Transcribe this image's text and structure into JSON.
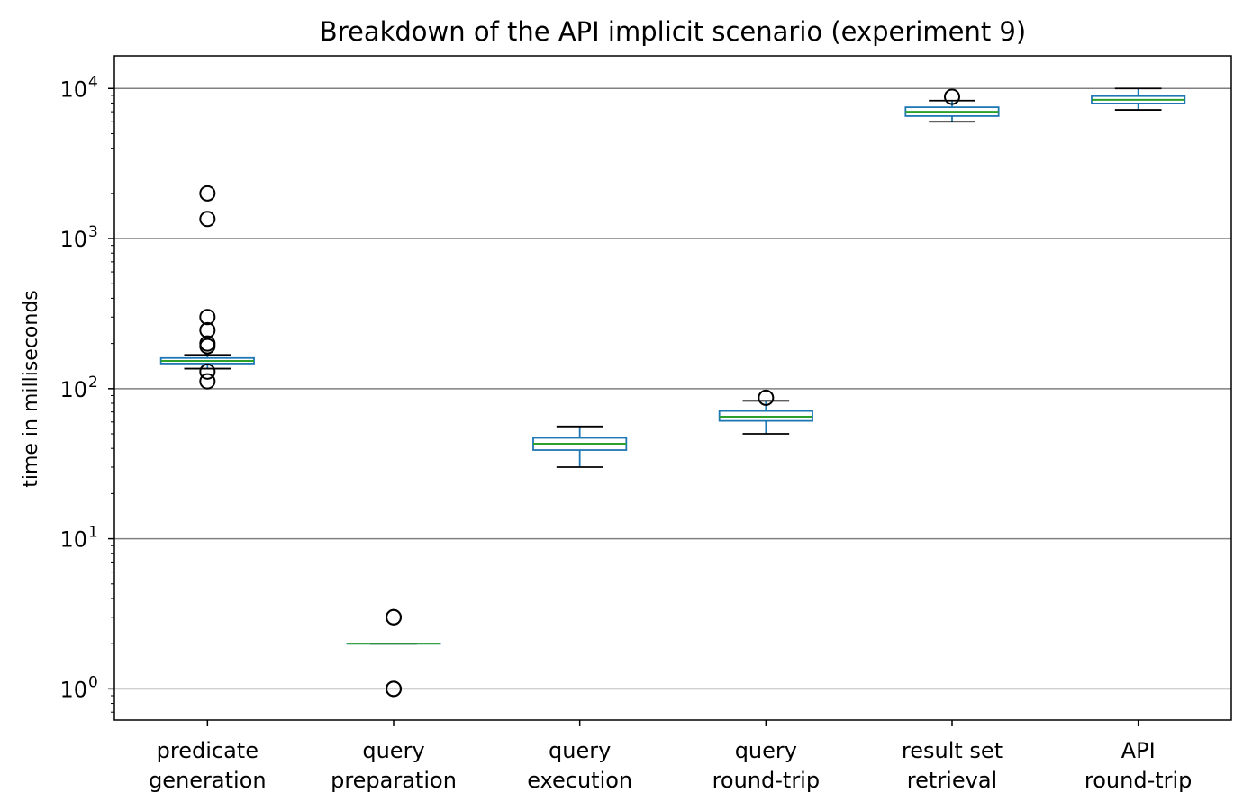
{
  "chart_data": {
    "type": "box",
    "title": "Breakdown of the API implicit scenario (experiment 9)",
    "xlabel": "",
    "ylabel": "time in milliseconds",
    "yscale": "log",
    "ylim": [
      0.62,
      16500
    ],
    "grid": {
      "y_major": true,
      "x": false
    },
    "ytick_labels": [
      {
        "base": "10",
        "exp": "0"
      },
      {
        "base": "10",
        "exp": "1"
      },
      {
        "base": "10",
        "exp": "2"
      },
      {
        "base": "10",
        "exp": "3"
      },
      {
        "base": "10",
        "exp": "4"
      }
    ],
    "categories": [
      {
        "line1": "predicate",
        "line2": "generation"
      },
      {
        "line1": "query",
        "line2": "preparation"
      },
      {
        "line1": "query",
        "line2": "execution"
      },
      {
        "line1": "query",
        "line2": "round-trip"
      },
      {
        "line1": "result set",
        "line2": "retrieval"
      },
      {
        "line1": "API",
        "line2": "round-trip"
      }
    ],
    "boxes": [
      {
        "whislo": 136,
        "q1": 147,
        "median": 153,
        "q3": 160,
        "whishi": 168,
        "fliers": [
          2000,
          1350,
          300,
          245,
          200,
          192,
          130,
          112
        ]
      },
      {
        "whislo": 2,
        "q1": 2,
        "median": 2,
        "q3": 2,
        "whishi": 2,
        "fliers": [
          3,
          3,
          1,
          1
        ]
      },
      {
        "whislo": 30,
        "q1": 39,
        "median": 43,
        "q3": 47,
        "whishi": 56,
        "fliers": []
      },
      {
        "whislo": 50,
        "q1": 61,
        "median": 65,
        "q3": 71,
        "whishi": 83,
        "fliers": [
          87
        ]
      },
      {
        "whislo": 6000,
        "q1": 6550,
        "median": 7000,
        "q3": 7500,
        "whishi": 8300,
        "fliers": [
          8800
        ]
      },
      {
        "whislo": 7200,
        "q1": 7950,
        "median": 8400,
        "q3": 8900,
        "whishi": 10000,
        "fliers": []
      }
    ],
    "colors": {
      "box": "#1f77b4",
      "median": "#2ca02c",
      "whisker_cap": "#000000",
      "flier": "#000000",
      "grid": "#808080",
      "axes": "#000000"
    }
  }
}
